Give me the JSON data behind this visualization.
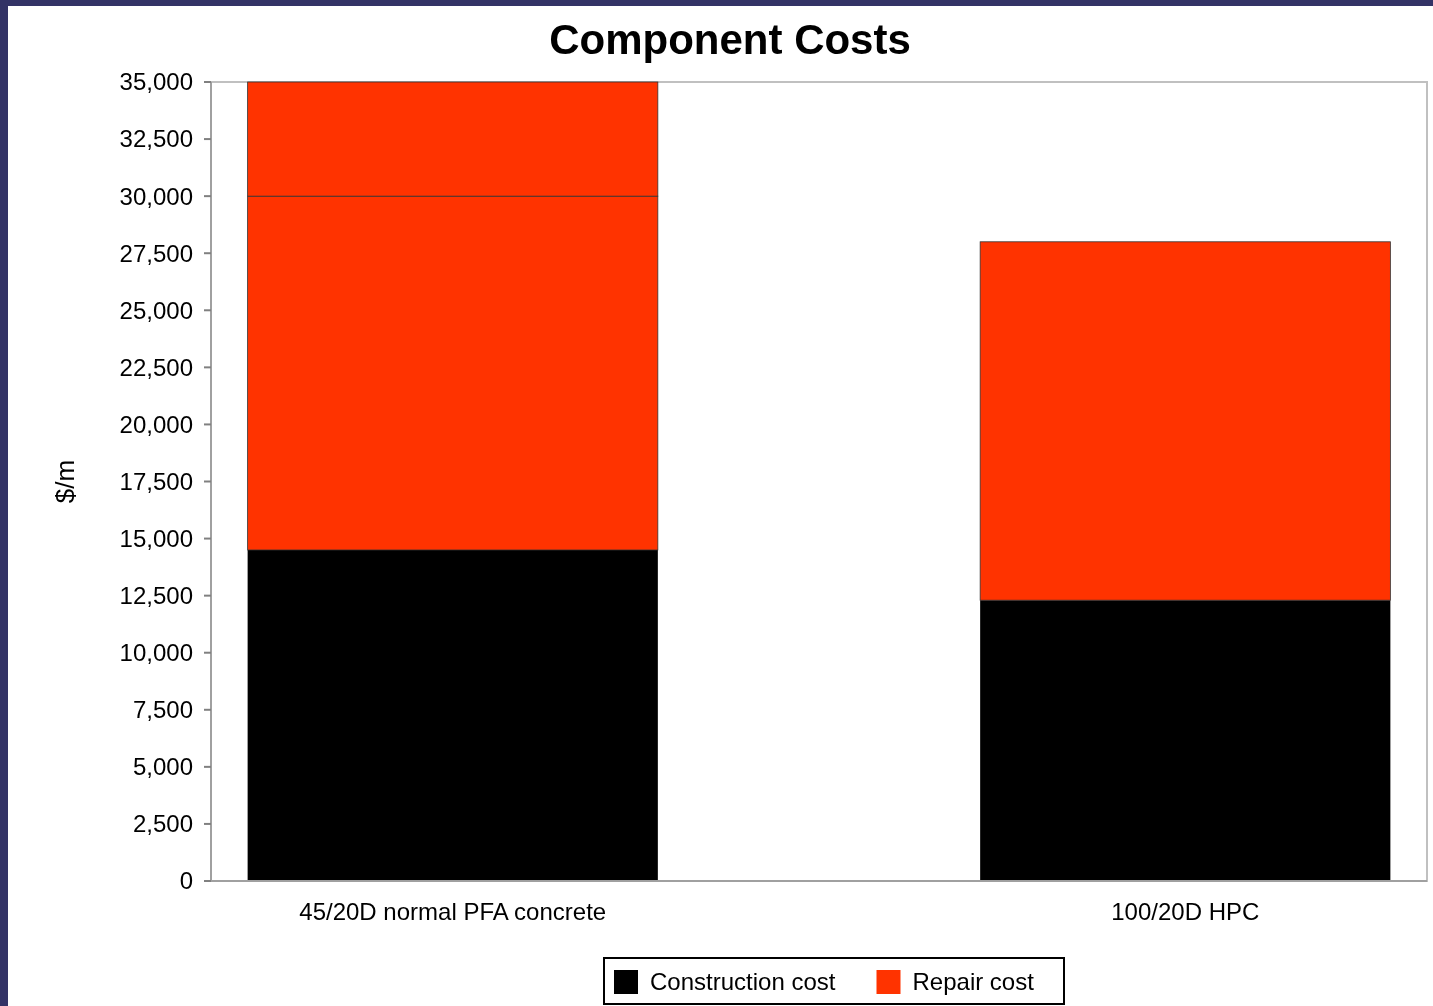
{
  "chart_data": {
    "type": "bar",
    "title": "Component Costs",
    "ylabel": "$/m",
    "stacked": true,
    "categories": [
      "45/20D normal PFA concrete",
      "100/20D HPC"
    ],
    "series": [
      {
        "name": "Construction cost",
        "color": "#000000",
        "values": [
          14500,
          12300
        ]
      },
      {
        "name": "Repair cost",
        "color": "#ff3300",
        "values": [
          15500,
          15700
        ]
      },
      {
        "color": "#ff3300",
        "values": [
          5000,
          null
        ]
      }
    ],
    "ylim": [
      0,
      35000
    ],
    "yticks": [
      {
        "value": 0,
        "label": "0"
      },
      {
        "value": 2500,
        "label": "2,500"
      },
      {
        "value": 5000,
        "label": "5,000"
      },
      {
        "value": 7500,
        "label": "7,500"
      },
      {
        "value": 10000,
        "label": "10,000"
      },
      {
        "value": 12500,
        "label": "12,500"
      },
      {
        "value": 15000,
        "label": "15,000"
      },
      {
        "value": 17500,
        "label": "17,500"
      },
      {
        "value": 20000,
        "label": "20,000"
      },
      {
        "value": 22500,
        "label": "22,500"
      },
      {
        "value": 25000,
        "label": "25,000"
      },
      {
        "value": 27500,
        "label": "27,500"
      },
      {
        "value": 30000,
        "label": "30,000"
      },
      {
        "value": 32500,
        "label": "32,500"
      },
      {
        "value": 35000,
        "label": "35,000"
      }
    ],
    "grid": false,
    "legend": "bottom"
  }
}
